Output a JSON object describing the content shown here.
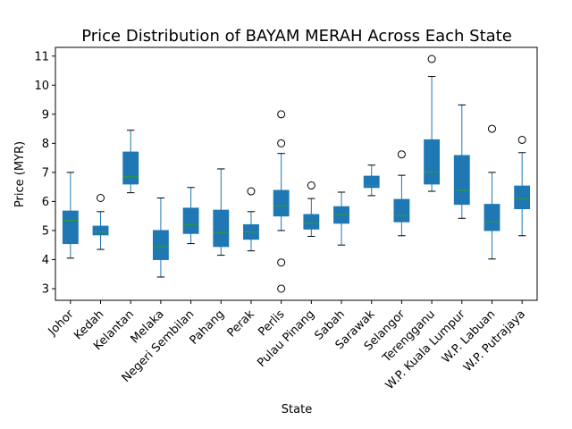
{
  "chart_data": {
    "type": "box",
    "title": "Price Distribution of BAYAM MERAH Across Each State",
    "xlabel": "State",
    "ylabel": "Price (MYR)",
    "ylim": [
      2.6,
      11.3
    ],
    "yticks": [
      3,
      4,
      5,
      6,
      7,
      8,
      9,
      10,
      11
    ],
    "grid": false,
    "colors": {
      "box": "#1f77b4",
      "median": "#2ca02c",
      "line": "#000000"
    },
    "categories": [
      "Johor",
      "Kedah",
      "Kelantan",
      "Melaka",
      "Negeri Sembilan",
      "Pahang",
      "Perak",
      "Perlis",
      "Pulau Pinang",
      "Sabah",
      "Sarawak",
      "Selangor",
      "Terengganu",
      "W.P. Kuala Lumpur",
      "W.P. Labuan",
      "W.P. Putrajaya"
    ],
    "boxes": [
      {
        "whislo": 4.05,
        "q1": 4.55,
        "med": 5.35,
        "q3": 5.67,
        "whishi": 7.0,
        "fliers": []
      },
      {
        "whislo": 4.35,
        "q1": 4.85,
        "med": 4.95,
        "q3": 5.15,
        "whishi": 5.65,
        "fliers": [
          6.12
        ]
      },
      {
        "whislo": 6.3,
        "q1": 6.6,
        "med": 6.85,
        "q3": 7.7,
        "whishi": 8.45,
        "fliers": []
      },
      {
        "whislo": 3.4,
        "q1": 4.0,
        "med": 4.45,
        "q3": 5.0,
        "whishi": 6.12,
        "fliers": []
      },
      {
        "whislo": 4.55,
        "q1": 4.9,
        "med": 5.2,
        "q3": 5.77,
        "whishi": 6.48,
        "fliers": []
      },
      {
        "whislo": 4.15,
        "q1": 4.45,
        "med": 4.92,
        "q3": 5.7,
        "whishi": 7.12,
        "fliers": []
      },
      {
        "whislo": 4.3,
        "q1": 4.7,
        "med": 4.95,
        "q3": 5.2,
        "whishi": 5.65,
        "fliers": [
          6.35
        ]
      },
      {
        "whislo": 5.0,
        "q1": 5.5,
        "med": 5.85,
        "q3": 6.38,
        "whishi": 7.65,
        "fliers": [
          9.0,
          8.0,
          3.9,
          3.0
        ]
      },
      {
        "whislo": 4.8,
        "q1": 5.05,
        "med": 5.25,
        "q3": 5.55,
        "whishi": 6.1,
        "fliers": [
          6.55
        ]
      },
      {
        "whislo": 4.5,
        "q1": 5.25,
        "med": 5.55,
        "q3": 5.82,
        "whishi": 6.32,
        "fliers": []
      },
      {
        "whislo": 6.2,
        "q1": 6.48,
        "med": 6.55,
        "q3": 6.87,
        "whishi": 7.25,
        "fliers": []
      },
      {
        "whislo": 4.82,
        "q1": 5.3,
        "med": 5.52,
        "q3": 6.07,
        "whishi": 6.9,
        "fliers": [
          7.62
        ]
      },
      {
        "whislo": 6.35,
        "q1": 6.6,
        "med": 7.02,
        "q3": 8.12,
        "whishi": 10.3,
        "fliers": [
          10.9
        ]
      },
      {
        "whislo": 5.42,
        "q1": 5.9,
        "med": 6.38,
        "q3": 7.58,
        "whishi": 9.32,
        "fliers": []
      },
      {
        "whislo": 4.02,
        "q1": 5.0,
        "med": 5.3,
        "q3": 5.9,
        "whishi": 7.0,
        "fliers": [
          8.5
        ]
      },
      {
        "whislo": 4.82,
        "q1": 5.75,
        "med": 6.1,
        "q3": 6.53,
        "whishi": 7.68,
        "fliers": [
          8.12
        ]
      }
    ]
  }
}
